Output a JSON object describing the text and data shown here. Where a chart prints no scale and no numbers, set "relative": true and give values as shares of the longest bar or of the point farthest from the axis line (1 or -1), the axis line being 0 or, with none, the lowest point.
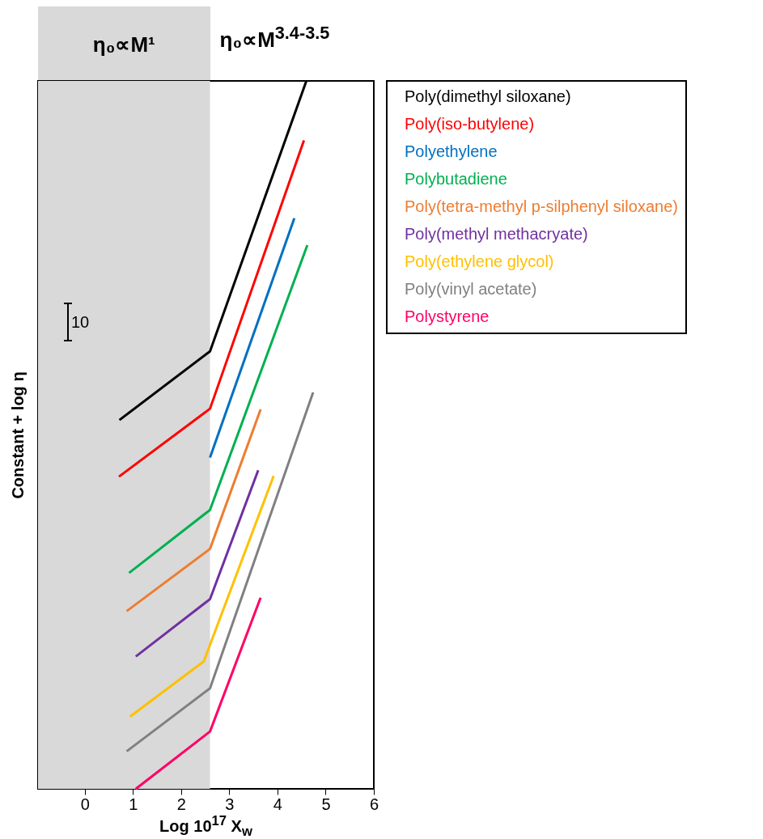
{
  "chart_data": {
    "type": "line",
    "relative": true,
    "xlabel": "Log 10$^{17}$ X$_{w}$",
    "ylabel": "Constant + log η",
    "xlim": [
      -0.97,
      6
    ],
    "xticks": [
      0,
      1,
      2,
      3,
      4,
      5,
      6
    ],
    "tick_labels": "x",
    "grid": false,
    "legend": "right",
    "line_style": "solid",
    "marker": "none",
    "bands": [
      {
        "axis": "x",
        "from": -0.97,
        "to": 2.6,
        "label": "η₀∝M¹",
        "color": "#d9d9d9"
      }
    ],
    "annotations": [
      "η₀∝M$^{3.4-3.5}$",
      "10"
    ],
    "series": [
      {
        "name": "Poly(dimethyl siloxane)",
        "color": "#000000",
        "x": [
          0.72,
          2.6,
          4.6
        ],
        "values": [
          0.521,
          0.618,
          1.0
        ]
      },
      {
        "name": "Poly(iso-butylene)",
        "color": "#ff0000",
        "x": [
          0.71,
          2.6,
          4.55
        ],
        "values": [
          0.441,
          0.537,
          0.916
        ]
      },
      {
        "name": "Polyethylene",
        "color": "#0070c0",
        "x": [
          2.6,
          4.35
        ],
        "values": [
          0.468,
          0.806
        ]
      },
      {
        "name": "Polybutadiene",
        "color": "#00b050",
        "x": [
          0.92,
          2.6,
          4.62
        ],
        "values": [
          0.305,
          0.394,
          0.768
        ]
      },
      {
        "name": "Poly(tetra-methyl p-silphenyl siloxane)",
        "color": "#ed7d31",
        "x": [
          0.87,
          2.6,
          3.65
        ],
        "values": [
          0.251,
          0.339,
          0.536
        ]
      },
      {
        "name": "Poly(methyl methacryate)",
        "color": "#7030a0",
        "x": [
          1.06,
          2.6,
          3.6
        ],
        "values": [
          0.187,
          0.268,
          0.45
        ]
      },
      {
        "name": "Poly(ethylene glycol)",
        "color": "#ffc000",
        "x": [
          0.94,
          2.47,
          3.92
        ],
        "values": [
          0.102,
          0.18,
          0.442
        ]
      },
      {
        "name": "Poly(vinyl acetate)",
        "color": "#808080",
        "x": [
          0.87,
          2.6,
          4.74
        ],
        "values": [
          0.053,
          0.142,
          0.56
        ]
      },
      {
        "name": "Polystyrene",
        "color": "#ff0066",
        "x": [
          1.06,
          2.6,
          3.65
        ],
        "values": [
          0.0,
          0.081,
          0.27
        ]
      }
    ]
  }
}
